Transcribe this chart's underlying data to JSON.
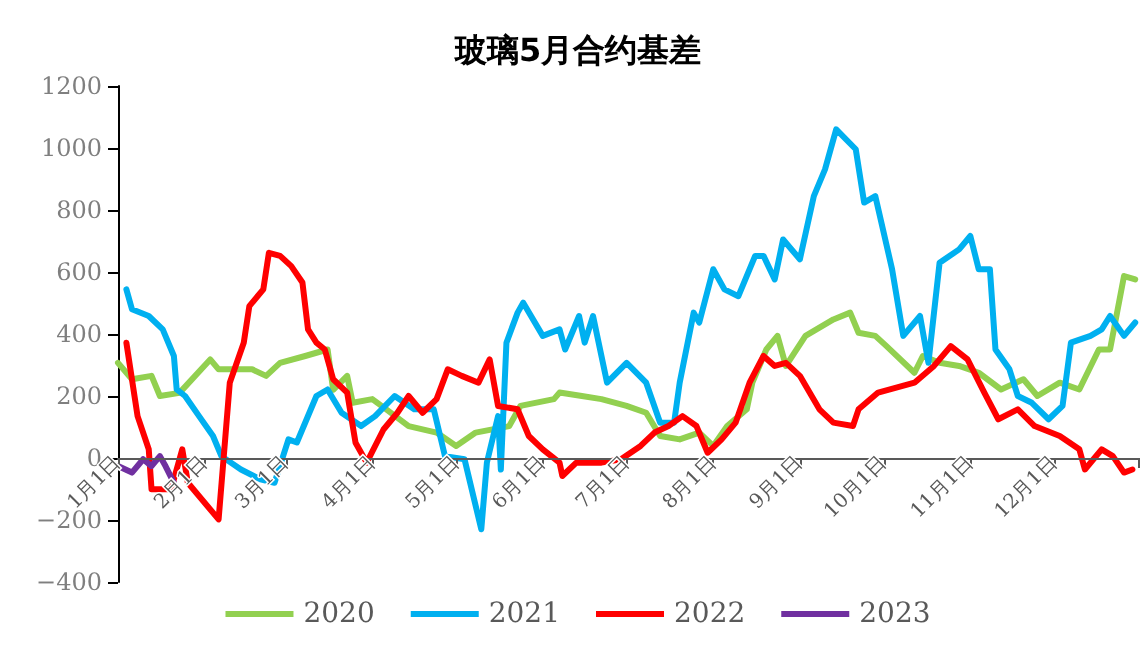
{
  "chart_data": {
    "type": "line",
    "title": "玻璃5月合约基差",
    "legend": "bottom",
    "grid": false,
    "marker": "none",
    "line_style": "solid",
    "xlim": [
      "--01-01",
      "--12-31"
    ],
    "xticks": [
      {
        "value": "--01-01",
        "label": "1月1日"
      },
      {
        "value": "--02-01",
        "label": "2月1日"
      },
      {
        "value": "--03-01",
        "label": "3月1日"
      },
      {
        "value": "--04-01",
        "label": "4月1日"
      },
      {
        "value": "--05-01",
        "label": "5月1日"
      },
      {
        "value": "--06-01",
        "label": "6月1日"
      },
      {
        "value": "--07-01",
        "label": "7月1日"
      },
      {
        "value": "--08-01",
        "label": "8月1日"
      },
      {
        "value": "--09-01",
        "label": "9月1日"
      },
      {
        "value": "--10-01",
        "label": "10月1日"
      },
      {
        "value": "--11-01",
        "label": "11月1日"
      },
      {
        "value": "--12-01",
        "label": "12月1日"
      }
    ],
    "ylim": [
      -400,
      1200
    ],
    "yticks": [
      -400,
      -200,
      0,
      200,
      400,
      600,
      800,
      1000,
      1200
    ],
    "series": [
      {
        "name": "2020",
        "color": "#92d050",
        "x": [
          "--01-01",
          "--01-06",
          "--01-13",
          "--01-16",
          "--01-23",
          "--02-03",
          "--02-06",
          "--02-18",
          "--02-23",
          "--02-28",
          "--03-08",
          "--03-16",
          "--03-18",
          "--03-23",
          "--03-25",
          "--04-01",
          "--04-06",
          "--04-14",
          "--04-24",
          "--05-01",
          "--05-08",
          "--05-20",
          "--05-24",
          "--06-05",
          "--06-07",
          "--06-15",
          "--06-22",
          "--07-01",
          "--07-08",
          "--07-13",
          "--07-20",
          "--07-27",
          "--08-01",
          "--08-06",
          "--08-13",
          "--08-15",
          "--08-20",
          "--08-24",
          "--08-27",
          "--09-03",
          "--09-13",
          "--09-19",
          "--09-22",
          "--09-28",
          "--10-02",
          "--10-12",
          "--10-15",
          "--10-21",
          "--10-28",
          "--11-04",
          "--11-12",
          "--11-20",
          "--11-25",
          "--12-03",
          "--12-10",
          "--12-17",
          "--12-21",
          "--12-26",
          "--12-30"
        ],
        "values": [
          307,
          254,
          265,
          200,
          210,
          318,
          286,
          286,
          265,
          307,
          329,
          350,
          220,
          265,
          178,
          190,
          157,
          103,
          82,
          39,
          82,
          103,
          168,
          190,
          211,
          200,
          190,
          168,
          146,
          71,
          60,
          82,
          39,
          103,
          157,
          243,
          350,
          394,
          297,
          394,
          447,
          469,
          404,
          394,
          361,
          275,
          329,
          307,
          297,
          275,
          221,
          254,
          200,
          243,
          221,
          350,
          350,
          587,
          576
        ]
      },
      {
        "name": "2021",
        "color": "#00b0f0",
        "x": [
          "--01-04",
          "--01-06",
          "--01-12",
          "--01-17",
          "--01-21",
          "--01-22",
          "--01-25",
          "--01-30",
          "--02-04",
          "--02-07",
          "--02-14",
          "--02-21",
          "--02-26",
          "--03-02",
          "--03-05",
          "--03-12",
          "--03-16",
          "--03-21",
          "--03-28",
          "--04-02",
          "--04-09",
          "--04-16",
          "--04-23",
          "--04-27",
          "--05-04",
          "--05-10",
          "--05-12",
          "--05-16",
          "--05-17",
          "--05-19",
          "--05-23",
          "--05-25",
          "--06-01",
          "--06-07",
          "--06-09",
          "--06-14",
          "--06-16",
          "--06-19",
          "--06-24",
          "--07-01",
          "--07-08",
          "--07-13",
          "--07-18",
          "--07-20",
          "--07-25",
          "--07-27",
          "--08-01",
          "--08-05",
          "--08-10",
          "--08-16",
          "--08-19",
          "--08-23",
          "--08-26",
          "--09-01",
          "--09-06",
          "--09-10",
          "--09-14",
          "--09-21",
          "--09-24",
          "--09-28",
          "--10-04",
          "--10-08",
          "--10-14",
          "--10-17",
          "--10-21",
          "--10-28",
          "--11-01",
          "--11-04",
          "--11-08",
          "--11-10",
          "--11-15",
          "--11-18",
          "--11-23",
          "--11-29",
          "--12-04",
          "--12-07",
          "--12-14",
          "--12-18",
          "--12-21",
          "--12-26",
          "--12-30"
        ],
        "values": [
          544,
          480,
          458,
          415,
          329,
          221,
          200,
          135,
          71,
          6,
          -37,
          -69,
          -80,
          60,
          50,
          200,
          221,
          146,
          103,
          135,
          200,
          157,
          157,
          6,
          -4,
          -230,
          -15,
          135,
          -37,
          372,
          469,
          501,
          394,
          415,
          350,
          458,
          372,
          458,
          243,
          307,
          243,
          114,
          114,
          243,
          469,
          437,
          609,
          544,
          522,
          652,
          652,
          576,
          705,
          641,
          845,
          931,
          1060,
          996,
          824,
          845,
          609,
          394,
          458,
          307,
          630,
          673,
          716,
          609,
          609,
          350,
          286,
          200,
          178,
          125,
          168,
          372,
          394,
          415,
          458,
          394,
          437
        ]
      },
      {
        "name": "2022",
        "color": "#ff0000",
        "x": [
          "--01-04",
          "--01-08",
          "--01-12",
          "--01-13",
          "--01-20",
          "--01-24",
          "--01-26",
          "--02-06",
          "--02-10",
          "--02-15",
          "--02-17",
          "--02-22",
          "--02-24",
          "--02-28",
          "--03-03",
          "--03-07",
          "--03-09",
          "--03-12",
          "--03-15",
          "--03-18",
          "--03-23",
          "--03-26",
          "--03-30",
          "--04-05",
          "--04-10",
          "--04-14",
          "--04-19",
          "--04-24",
          "--04-28",
          "--05-03",
          "--05-09",
          "--05-13",
          "--05-16",
          "--05-23",
          "--05-27",
          "--06-01",
          "--06-07",
          "--06-08",
          "--06-13",
          "--06-22",
          "--06-29",
          "--07-06",
          "--07-11",
          "--07-16",
          "--07-21",
          "--07-26",
          "--07-30",
          "--08-04",
          "--08-09",
          "--08-14",
          "--08-19",
          "--08-23",
          "--08-27",
          "--09-01",
          "--09-08",
          "--09-13",
          "--09-20",
          "--09-22",
          "--09-29",
          "--10-12",
          "--10-19",
          "--10-25",
          "--10-31",
          "--11-06",
          "--11-11",
          "--11-18",
          "--11-24",
          "--12-03",
          "--12-10",
          "--12-12",
          "--12-18",
          "--12-22",
          "--12-26",
          "--12-29"
        ],
        "values": [
          372,
          135,
          28,
          -101,
          -101,
          28,
          -80,
          -198,
          243,
          372,
          490,
          544,
          662,
          652,
          619,
          566,
          415,
          372,
          350,
          254,
          211,
          49,
          -15,
          92,
          146,
          200,
          146,
          190,
          286,
          265,
          243,
          318,
          168,
          157,
          71,
          28,
          -15,
          -58,
          -15,
          -15,
          -4,
          39,
          82,
          103,
          135,
          103,
          17,
          60,
          114,
          243,
          329,
          297,
          307,
          265,
          157,
          114,
          103,
          157,
          211,
          243,
          297,
          361,
          318,
          211,
          125,
          157,
          103,
          71,
          28,
          -37,
          28,
          6,
          -47,
          -37
        ]
      },
      {
        "name": "2023",
        "color": "#7030a0",
        "x": [
          "--01-01",
          "--01-06",
          "--01-10",
          "--01-13",
          "--01-16",
          "--01-18",
          "--01-21"
        ],
        "values": [
          -26,
          -47,
          -4,
          -26,
          6,
          -26,
          -80
        ]
      }
    ]
  }
}
